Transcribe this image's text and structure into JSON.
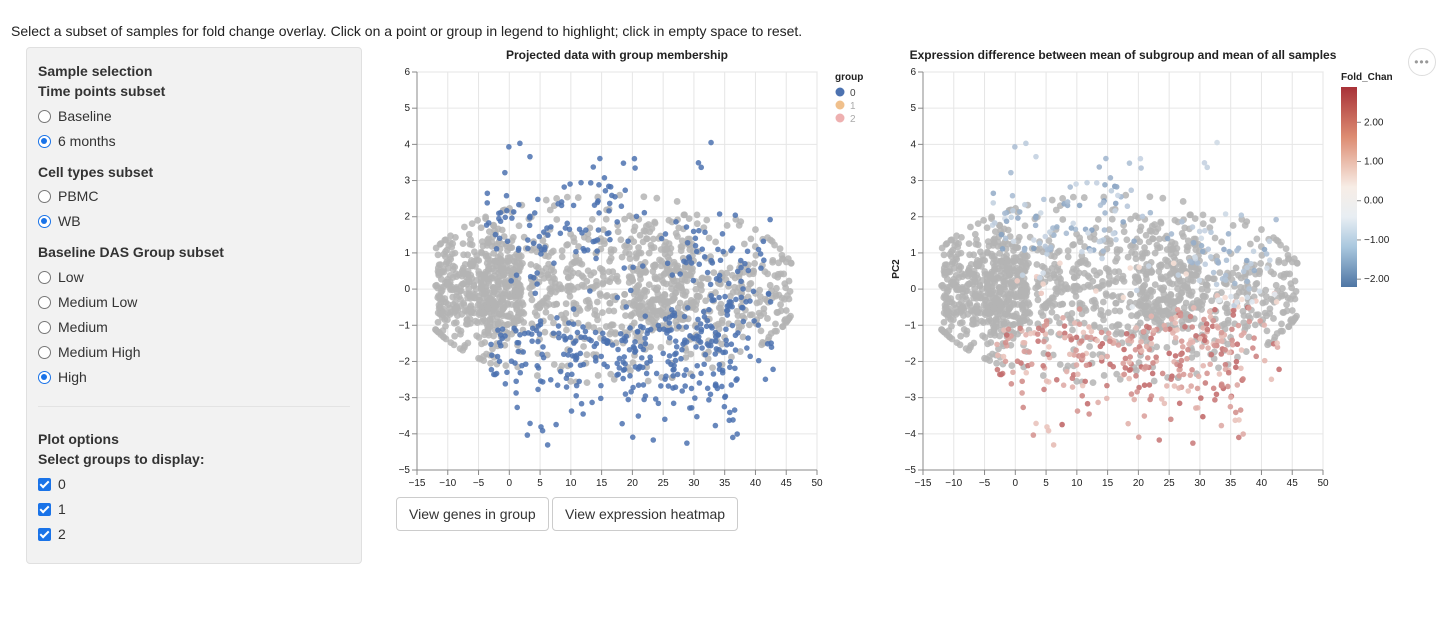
{
  "instructions": "Select a subset of samples for fold change overlay. Click on a point or group in legend to highlight; click in empty space to reset.",
  "sidebar": {
    "title": "Sample selection",
    "time_points": {
      "label": "Time points subset",
      "options": [
        "Baseline",
        "6 months"
      ],
      "selected": "6 months"
    },
    "cell_types": {
      "label": "Cell types subset",
      "options": [
        "PBMC",
        "WB"
      ],
      "selected": "WB"
    },
    "das_group": {
      "label": "Baseline DAS Group subset",
      "options": [
        "Low",
        "Medium Low",
        "Medium",
        "Medium High",
        "High"
      ],
      "selected": "High"
    },
    "plot_options": {
      "title": "Plot options",
      "label": "Select groups to display:",
      "groups": [
        "0",
        "1",
        "2"
      ],
      "checked": [
        "0",
        "1",
        "2"
      ]
    }
  },
  "buttons": {
    "genes": "View genes in group",
    "heatmap": "View expression heatmap"
  },
  "menu_icon": "ellipsis-icon",
  "colors": {
    "group0": "#4c72b0",
    "group1": "#f0c08c",
    "group2": "#eeb0b0",
    "background_points": "#b4b4b4"
  },
  "chart_data": [
    {
      "type": "scatter",
      "title": "Projected data with group membership",
      "xlabel": "",
      "ylabel": "",
      "xlim": [
        -15,
        50
      ],
      "ylim": [
        -5,
        6
      ],
      "xticks": [
        "−15",
        "−10",
        "−5",
        "0",
        "5",
        "10",
        "15",
        "20",
        "25",
        "30",
        "35",
        "40",
        "45",
        "50"
      ],
      "yticks": [
        "−5",
        "−4",
        "−3",
        "−2",
        "−1",
        "0",
        "1",
        "2",
        "3",
        "4",
        "5",
        "6"
      ],
      "legend": {
        "title": "group",
        "entries": [
          "0",
          "1",
          "2"
        ],
        "placement": "right"
      },
      "grid": true
    },
    {
      "type": "scatter",
      "title": "Expression difference between mean of subgroup and mean of all samples",
      "xlabel": "",
      "ylabel": "PC2",
      "xlim": [
        -15,
        50
      ],
      "ylim": [
        -5,
        6
      ],
      "xticks": [
        "−15",
        "−10",
        "−5",
        "0",
        "5",
        "10",
        "15",
        "20",
        "25",
        "30",
        "35",
        "40",
        "45",
        "50"
      ],
      "yticks": [
        "−5",
        "−4",
        "−3",
        "−2",
        "−1",
        "0",
        "1",
        "2",
        "3",
        "4",
        "5",
        "6"
      ],
      "colorbar": {
        "title": "Fold_Chan",
        "ticks": [
          "2.00",
          "1.00",
          "0.00",
          "−1.00",
          "−2.00"
        ],
        "range": [
          -2.2,
          2.9
        ]
      },
      "grid": true
    }
  ]
}
